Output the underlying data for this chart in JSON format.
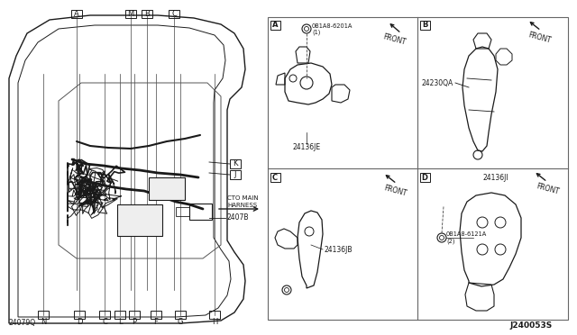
{
  "bg_color": "#ffffff",
  "line_color": "#1a1a1a",
  "border_color": "#888888",
  "title_bottom_right": "J240053S",
  "main_label": "24079Q",
  "part_2407B": "2407B",
  "part_24136JE": "24136JE",
  "part_24230QA": "24230QA",
  "part_24136JB": "24136JB",
  "part_24136JII": "24136JI",
  "bolt_A": "0B1A8-6201A",
  "bolt_A2": "(1)",
  "bolt_B": "0B1A8-6121A",
  "bolt_B2": "(2)",
  "label_TO_MAIN": "CTO MAIN\nHARNESS",
  "letters_top": [
    "A",
    "M",
    "B",
    "C"
  ],
  "letters_bottom": [
    "N",
    "D",
    "C",
    "L",
    "P",
    "F",
    "G",
    "H"
  ],
  "letters_J": "J",
  "letters_K": "K",
  "section_A": "A",
  "section_B": "B",
  "section_C": "C",
  "section_D": "D",
  "front_label": "FRONT",
  "fig_width": 6.4,
  "fig_height": 3.72,
  "dpi": 100
}
